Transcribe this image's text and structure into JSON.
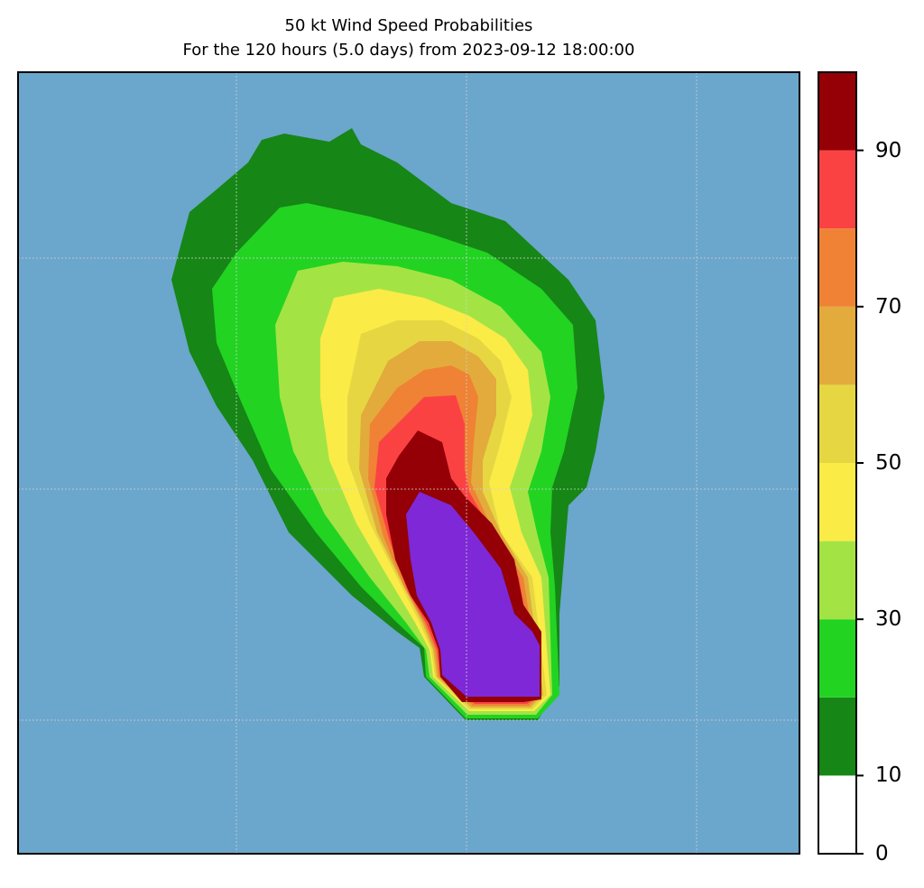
{
  "title_line1": "50 kt Wind Speed Probabilities",
  "title_line2": "For the 120 hours (5.0 days) from 2023-09-12 18:00:00",
  "colors": {
    "ocean": "#6ba6cc",
    "bands": [
      "#ffffff",
      "#168616",
      "#22d322",
      "#a3e444",
      "#fbeb47",
      "#e6d742",
      "#e3ab3b",
      "#ef8234",
      "#fb4243",
      "#940006",
      "#7e28d8"
    ]
  },
  "colorbar": {
    "bounds": [
      0,
      10,
      20,
      30,
      40,
      50,
      60,
      70,
      80,
      90,
      100
    ],
    "tick_labels": [
      "0",
      "10",
      "30",
      "50",
      "70",
      "90"
    ]
  },
  "gridlines": true
}
